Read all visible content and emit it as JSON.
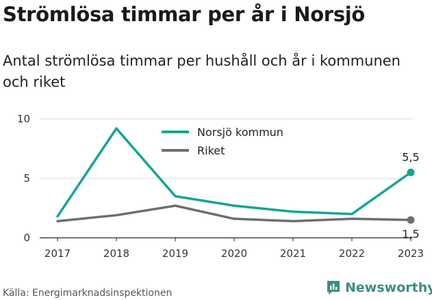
{
  "title": "Strömlösa timmar per år i Norsjö",
  "subtitle": "Antal strömlösa timmar per hushåll och år i kommunen och riket",
  "source": "Källa: Energimarknadsinspektionen",
  "brand": {
    "name": "Newsworthy",
    "icon": "newsworthy-logo-icon",
    "color": "#3a8f80"
  },
  "chart_data": {
    "type": "line",
    "x": [
      "2017",
      "2018",
      "2019",
      "2020",
      "2021",
      "2022",
      "2023"
    ],
    "ylim": [
      0,
      10
    ],
    "yticks": [
      0,
      5,
      10
    ],
    "grid": true,
    "legend_position": "top-center",
    "series": [
      {
        "name": "Norsjö kommun",
        "color": "#13a596",
        "values": [
          1.8,
          9.2,
          3.5,
          2.7,
          2.2,
          2.0,
          5.5
        ],
        "end_label": "5,5"
      },
      {
        "name": "Riket",
        "color": "#6e6e72",
        "values": [
          1.4,
          1.9,
          2.7,
          1.6,
          1.4,
          1.6,
          1.5
        ],
        "end_label": "1,5"
      }
    ]
  }
}
